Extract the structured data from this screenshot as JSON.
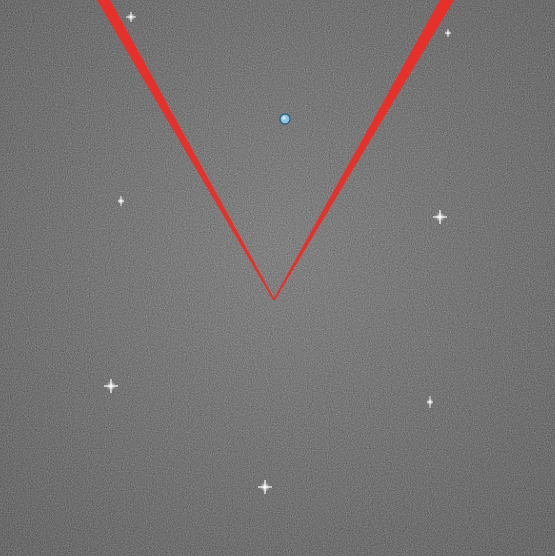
{
  "image": {
    "description_kind": "grayscale noisy star field with red V-shaped wedge overlay",
    "colors": {
      "background_gray": "#5f5f5f",
      "noise_light": "#b9b9b9",
      "noise_dark": "#2a2a2a",
      "wedge_red": "#e8302a",
      "star_white": "#ffffff",
      "marker_blue": "#8fc3e6",
      "marker_outline": "#2b5c7a"
    },
    "icons": {
      "wedge": "v-wedge-overlay",
      "marker": "blue-dot-marker",
      "star": "sparkle-star"
    }
  }
}
